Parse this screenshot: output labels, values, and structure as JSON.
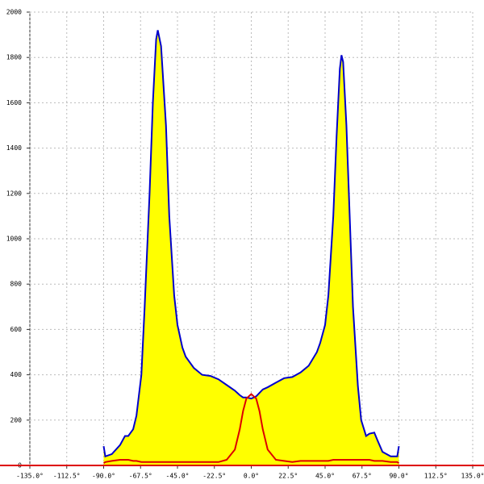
{
  "chart_data": {
    "type": "area-line",
    "x": [
      -90,
      -89,
      -85,
      -80,
      -77,
      -75,
      -72,
      -70,
      -67,
      -65,
      -62,
      -60,
      -58,
      -57,
      -55,
      -52,
      -50,
      -47,
      -45,
      -42,
      -40,
      -35,
      -30,
      -25,
      -20,
      -15,
      -10,
      -7,
      -5,
      -3,
      0,
      3,
      5,
      7,
      10,
      15,
      20,
      25,
      30,
      35,
      40,
      42,
      45,
      47,
      50,
      52,
      54,
      55,
      56,
      58,
      60,
      62,
      65,
      67,
      70,
      72,
      75,
      77,
      80,
      85,
      89,
      90
    ],
    "series": [
      {
        "color": "#0000cc",
        "fill": "#ffff00",
        "values": [
          85,
          40,
          50,
          90,
          130,
          130,
          160,
          220,
          400,
          700,
          1200,
          1600,
          1880,
          1920,
          1850,
          1500,
          1100,
          750,
          620,
          520,
          480,
          430,
          400,
          395,
          380,
          355,
          330,
          310,
          300,
          300,
          295,
          305,
          320,
          335,
          345,
          365,
          385,
          390,
          410,
          440,
          500,
          540,
          620,
          750,
          1100,
          1450,
          1750,
          1810,
          1780,
          1500,
          1100,
          700,
          350,
          200,
          130,
          140,
          145,
          110,
          60,
          40,
          40,
          85
        ]
      },
      {
        "color": "#dd0000",
        "values": [
          10,
          15,
          20,
          25,
          25,
          25,
          20,
          20,
          15,
          15,
          15,
          15,
          15,
          15,
          15,
          15,
          15,
          15,
          15,
          15,
          15,
          15,
          15,
          15,
          15,
          25,
          70,
          160,
          240,
          295,
          315,
          295,
          240,
          160,
          70,
          25,
          20,
          15,
          20,
          20,
          20,
          20,
          20,
          20,
          25,
          25,
          25,
          25,
          25,
          25,
          25,
          25,
          25,
          25,
          25,
          25,
          20,
          20,
          20,
          15,
          15,
          10
        ]
      }
    ],
    "xlim": [
      -135,
      135
    ],
    "xticks": [
      {
        "value": -135,
        "label": "-135.0°"
      },
      {
        "value": -112.5,
        "label": "-112.5°"
      },
      {
        "value": -90,
        "label": "-90.0°"
      },
      {
        "value": -67.5,
        "label": "-67.5°"
      },
      {
        "value": -45,
        "label": "-45.0°"
      },
      {
        "value": -22.5,
        "label": "-22.5°"
      },
      {
        "value": 0,
        "label": "0.0°"
      },
      {
        "value": 22.5,
        "label": "22.5°"
      },
      {
        "value": 45,
        "label": "45.0°"
      },
      {
        "value": 67.5,
        "label": "67.5°"
      },
      {
        "value": 90,
        "label": "90.0°"
      },
      {
        "value": 112.5,
        "label": "112.5°"
      },
      {
        "value": 135,
        "label": "135.0°"
      }
    ],
    "ylim": [
      0,
      2000
    ],
    "yticks": [
      0,
      200,
      400,
      600,
      800,
      1000,
      1200,
      1400,
      1600,
      1800,
      2000
    ],
    "grid": true
  }
}
